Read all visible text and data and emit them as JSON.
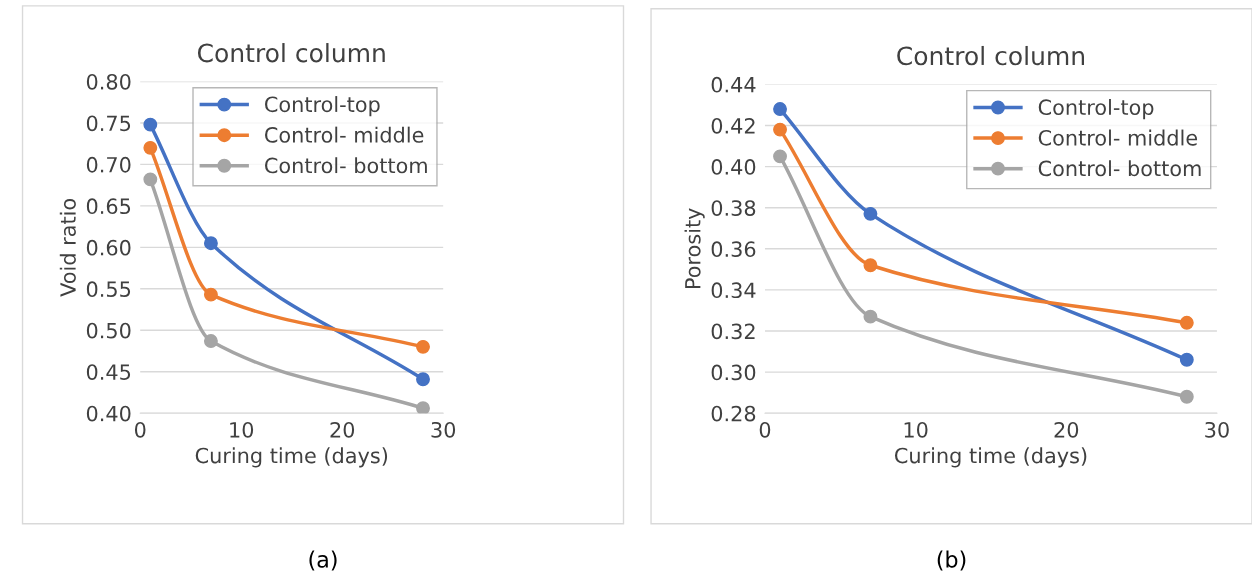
{
  "chart_data": [
    {
      "type": "line",
      "title": "Control column",
      "xlabel": "Curing time (days)",
      "ylabel": "Void ratio",
      "annotations": [
        "(a)"
      ],
      "x": [
        1,
        7,
        28
      ],
      "xlim": [
        0,
        30
      ],
      "xticks": [
        0,
        10,
        20,
        30
      ],
      "ylim": [
        0.4,
        0.8
      ],
      "yticks": [
        {
          "value": 0.4,
          "label": "0.40"
        },
        {
          "value": 0.45,
          "label": "0.45"
        },
        {
          "value": 0.5,
          "label": "0.50"
        },
        {
          "value": 0.55,
          "label": "0.55"
        },
        {
          "value": 0.6,
          "label": "0.60"
        },
        {
          "value": 0.65,
          "label": "0.65"
        },
        {
          "value": 0.7,
          "label": "0.70"
        },
        {
          "value": 0.75,
          "label": "0.75"
        },
        {
          "value": 0.8,
          "label": "0.80"
        }
      ],
      "grid": "y",
      "legend": "top right",
      "marker": "circle",
      "line_style": "solid",
      "series": [
        {
          "name": "Control-top",
          "color": "#4472c4",
          "values": [
            0.748,
            0.605,
            0.441
          ]
        },
        {
          "name": "Control- middle",
          "color": "#ed7d31",
          "values": [
            0.72,
            0.543,
            0.48
          ]
        },
        {
          "name": "Control- bottom",
          "color": "#a5a5a5",
          "values": [
            0.682,
            0.487,
            0.406
          ]
        }
      ]
    },
    {
      "type": "line",
      "title": "Control column",
      "xlabel": "Curing time (days)",
      "ylabel": "Porosity",
      "annotations": [
        "(b)"
      ],
      "x": [
        1,
        7,
        28
      ],
      "xlim": [
        0,
        30
      ],
      "xticks": [
        0,
        10,
        20,
        30
      ],
      "ylim": [
        0.28,
        0.44
      ],
      "yticks": [
        {
          "value": 0.28,
          "label": "0.28"
        },
        {
          "value": 0.3,
          "label": "0.30"
        },
        {
          "value": 0.32,
          "label": "0.32"
        },
        {
          "value": 0.34,
          "label": "0.34"
        },
        {
          "value": 0.36,
          "label": "0.36"
        },
        {
          "value": 0.38,
          "label": "0.38"
        },
        {
          "value": 0.4,
          "label": "0.40"
        },
        {
          "value": 0.42,
          "label": "0.42"
        },
        {
          "value": 0.44,
          "label": "0.44"
        }
      ],
      "grid": "y",
      "legend": "top right",
      "marker": "circle",
      "line_style": "solid",
      "series": [
        {
          "name": "Control-top",
          "color": "#4472c4",
          "values": [
            0.428,
            0.377,
            0.306
          ]
        },
        {
          "name": "Control- middle",
          "color": "#ed7d31",
          "values": [
            0.418,
            0.352,
            0.324
          ]
        },
        {
          "name": "Control- bottom",
          "color": "#a5a5a5",
          "values": [
            0.405,
            0.327,
            0.288
          ]
        }
      ]
    }
  ]
}
